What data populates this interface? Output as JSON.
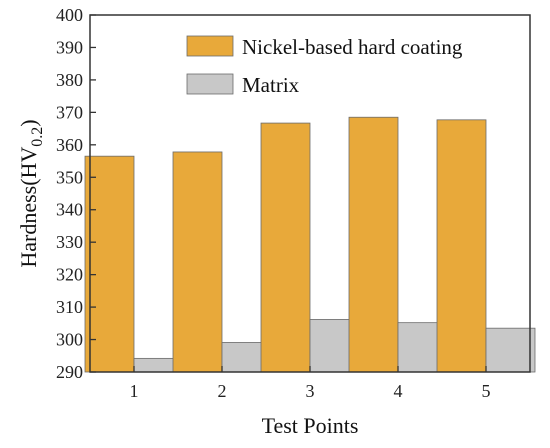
{
  "chart_data": {
    "type": "bar",
    "categories": [
      "1",
      "2",
      "3",
      "4",
      "5"
    ],
    "series": [
      {
        "name": "Nickel-based hard coating",
        "values": [
          356.5,
          357.8,
          366.7,
          368.5,
          367.7
        ],
        "color": "#E8A93A"
      },
      {
        "name": "Matrix",
        "values": [
          294.2,
          299.1,
          306.2,
          305.2,
          303.5
        ],
        "color": "#C8C8C8"
      }
    ],
    "xlabel": "Test Points",
    "ylabel_main": "Hardness(HV",
    "ylabel_sub": "0.2",
    "ylabel_close": ")",
    "ylim": [
      290,
      400
    ],
    "yticks": [
      290,
      300,
      310,
      320,
      330,
      340,
      350,
      360,
      370,
      380,
      390,
      400
    ],
    "grid": false,
    "legend_position": "top-right"
  }
}
